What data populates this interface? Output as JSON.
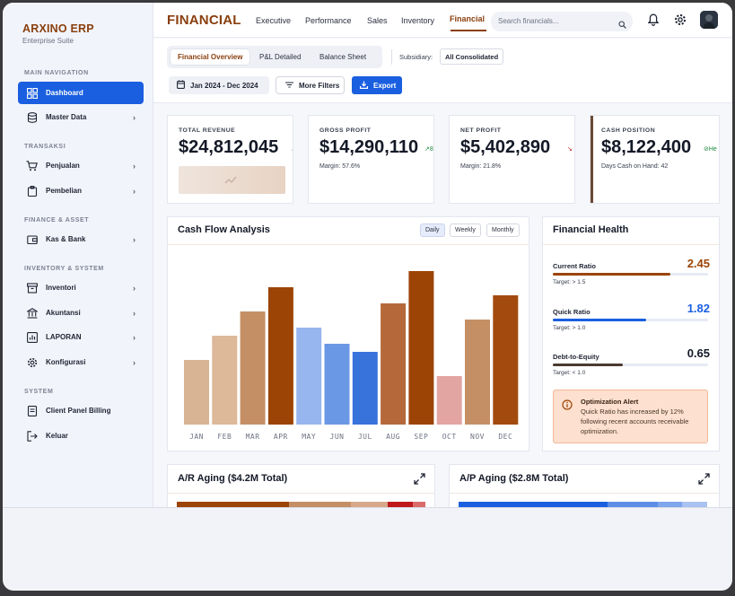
{
  "brand": {
    "name": "ARXINO ERP",
    "subtitle": "Enterprise Suite"
  },
  "sidebar": {
    "sections": [
      "MAIN NAVIGATION",
      "TRANSAKSI",
      "FINANCE & ASSET",
      "INVENTORY & SYSTEM",
      "SYSTEM"
    ],
    "items": [
      {
        "label": "Dashboard",
        "icon": "dashboard-icon",
        "active": true
      },
      {
        "label": "Master Data",
        "icon": "database-icon"
      },
      {
        "label": "Penjualan",
        "icon": "cart-icon"
      },
      {
        "label": "Pembelian",
        "icon": "clipboard-icon"
      },
      {
        "label": "Kas & Bank",
        "icon": "wallet-icon"
      },
      {
        "label": "Inventori",
        "icon": "archive-icon"
      },
      {
        "label": "Akuntansi",
        "icon": "bank-icon"
      },
      {
        "label": "LAPORAN",
        "icon": "chart-icon"
      },
      {
        "label": "Konfigurasi",
        "icon": "gear-icon"
      },
      {
        "label": "Client Panel Billing",
        "icon": "invoice-icon"
      },
      {
        "label": "Keluar",
        "icon": "logout-icon"
      }
    ]
  },
  "topbar": {
    "title": "FINANCIAL",
    "nav": [
      "Executive",
      "Performance",
      "Sales",
      "Inventory",
      "Financial"
    ],
    "active_nav": "Financial",
    "search_placeholder": "Search financials..."
  },
  "subheader": {
    "tabs": [
      "Financial Overview",
      "P&L Detailed",
      "Balance Sheet"
    ],
    "active_tab": "Financial Overview",
    "subsidiary_label": "Subsidiary:",
    "subsidiary_value": "All Consolidated",
    "date_range": "Jan 2024 - Dec 2024",
    "filters_label": "More Filters",
    "export_label": "Export"
  },
  "kpis": [
    {
      "label": "TOTAL REVENUE",
      "value": "$24,812,045",
      "accent": "#ffffff"
    },
    {
      "label": "GROSS PROFIT",
      "value": "$14,290,110",
      "meta": "Margin: 57.6%",
      "trend": "8",
      "accent": "#ffffff"
    },
    {
      "label": "NET PROFIT",
      "value": "$5,402,890",
      "meta": "Margin: 21.8%",
      "accent": "#ffffff"
    },
    {
      "label": "CASH POSITION",
      "value": "$8,122,400",
      "meta": "Days Cash on Hand: 42",
      "trend": "He",
      "accent": "#6b4a35"
    }
  ],
  "cashflow": {
    "title": "Cash Flow Analysis",
    "periods": [
      "Daily",
      "Weekly",
      "Monthly"
    ],
    "active_period": "Daily"
  },
  "chart_data": {
    "type": "bar",
    "title": "Cash Flow Analysis",
    "categories": [
      "JAN",
      "FEB",
      "MAR",
      "APR",
      "MAY",
      "JUN",
      "JUL",
      "AUG",
      "SEP",
      "OCT",
      "NOV",
      "DEC"
    ],
    "values": [
      40,
      55,
      70,
      85,
      60,
      50,
      45,
      75,
      95,
      30,
      65,
      80
    ],
    "colors": [
      "#d9b494",
      "#ddb899",
      "#c58f66",
      "#9c4406",
      "#97b5ee",
      "#6b98e4",
      "#3873dc",
      "#b5693a",
      "#9c4406",
      "#e3a5a2",
      "#c58f66",
      "#a34a0e"
    ],
    "ylim": [
      0,
      100
    ],
    "grid": false
  },
  "health": {
    "title": "Financial Health",
    "metrics": [
      {
        "label": "Current Ratio",
        "value": "2.45",
        "target": "Target: > 1.5",
        "fill": 0.76,
        "color": "#9c4406"
      },
      {
        "label": "Quick Ratio",
        "value": "1.82",
        "target": "Target: > 1.0",
        "fill": 0.6,
        "color": "#1a5fe0"
      },
      {
        "label": "Debt-to-Equity",
        "value": "0.65",
        "target": "Target: < 1.0",
        "fill": 0.45,
        "color": "#4a3a30"
      }
    ],
    "alert": {
      "title": "Optimization Alert",
      "text": "Quick Ratio has increased by 12% following recent accounts receivable optimization."
    }
  },
  "aging": {
    "ar_title": "A/R Aging ($4.2M Total)",
    "ap_title": "A/P Aging ($2.8M Total)",
    "ar_segments": [
      {
        "share": 0.45,
        "color": "#9c4406"
      },
      {
        "share": 0.25,
        "color": "#c58f66"
      },
      {
        "share": 0.15,
        "color": "#d7a98a"
      },
      {
        "share": 0.1,
        "color": "#c0191d"
      },
      {
        "share": 0.05,
        "color": "#d96b6b"
      }
    ],
    "ap_segments": [
      {
        "share": 0.6,
        "color": "#1a5fe0"
      },
      {
        "share": 0.2,
        "color": "#5c8ee6"
      },
      {
        "share": 0.1,
        "color": "#7fa5ec"
      },
      {
        "share": 0.1,
        "color": "#a9c2f2"
      }
    ]
  }
}
